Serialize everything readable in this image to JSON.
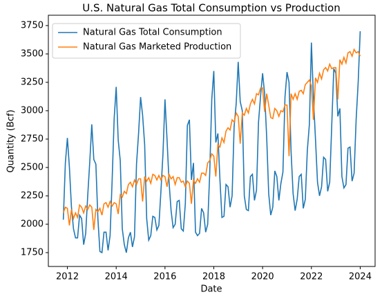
{
  "chart_data": {
    "type": "line",
    "title": "U.S. Natural Gas Total Consumption vs Production",
    "x_label": "Date",
    "y_label": "Quantity (Bcf)",
    "x": [
      2011.833,
      2011.917,
      2012.0,
      2012.083,
      2012.167,
      2012.25,
      2012.333,
      2012.417,
      2012.5,
      2012.583,
      2012.667,
      2012.75,
      2012.833,
      2012.917,
      2013.0,
      2013.083,
      2013.167,
      2013.25,
      2013.333,
      2013.417,
      2013.5,
      2013.583,
      2013.667,
      2013.75,
      2013.833,
      2013.917,
      2014.0,
      2014.083,
      2014.167,
      2014.25,
      2014.333,
      2014.417,
      2014.5,
      2014.583,
      2014.667,
      2014.75,
      2014.833,
      2014.917,
      2015.0,
      2015.083,
      2015.167,
      2015.25,
      2015.333,
      2015.417,
      2015.5,
      2015.583,
      2015.667,
      2015.75,
      2015.833,
      2015.917,
      2016.0,
      2016.083,
      2016.167,
      2016.25,
      2016.333,
      2016.417,
      2016.5,
      2016.583,
      2016.667,
      2016.75,
      2016.833,
      2016.917,
      2017.0,
      2017.083,
      2017.167,
      2017.25,
      2017.333,
      2017.417,
      2017.5,
      2017.583,
      2017.667,
      2017.75,
      2017.833,
      2017.917,
      2018.0,
      2018.083,
      2018.167,
      2018.25,
      2018.333,
      2018.417,
      2018.5,
      2018.583,
      2018.667,
      2018.75,
      2018.833,
      2018.917,
      2019.0,
      2019.083,
      2019.167,
      2019.25,
      2019.333,
      2019.417,
      2019.5,
      2019.583,
      2019.667,
      2019.75,
      2019.833,
      2019.917,
      2020.0,
      2020.083,
      2020.167,
      2020.25,
      2020.333,
      2020.417,
      2020.5,
      2020.583,
      2020.667,
      2020.75,
      2020.833,
      2020.917,
      2021.0,
      2021.083,
      2021.167,
      2021.25,
      2021.333,
      2021.417,
      2021.5,
      2021.583,
      2021.667,
      2021.75,
      2021.833,
      2021.917,
      2022.0,
      2022.083,
      2022.167,
      2022.25,
      2022.333,
      2022.417,
      2022.5,
      2022.583,
      2022.667,
      2022.75,
      2022.833,
      2022.917,
      2023.0,
      2023.083,
      2023.167,
      2023.25,
      2023.333,
      2023.417,
      2023.5,
      2023.583,
      2023.667,
      2023.75,
      2023.833,
      2023.917,
      2024.0
    ],
    "series": [
      {
        "name": "Natural Gas Total Consumption",
        "color": "#1f77b4",
        "values": [
          2040,
          2540,
          2760,
          2500,
          2150,
          1960,
          1880,
          1880,
          2080,
          2050,
          1820,
          1920,
          2250,
          2550,
          2880,
          2570,
          2530,
          2050,
          1760,
          1750,
          1930,
          1930,
          1770,
          1900,
          2380,
          2930,
          3210,
          2740,
          2560,
          1960,
          1820,
          1750,
          1880,
          1930,
          1800,
          1890,
          2530,
          2800,
          3120,
          2960,
          2700,
          2050,
          1860,
          1900,
          2070,
          2060,
          1950,
          1990,
          2290,
          2620,
          3100,
          2750,
          2370,
          2120,
          1970,
          2000,
          2200,
          2210,
          1960,
          1940,
          2180,
          2870,
          2920,
          2390,
          2540,
          1930,
          1900,
          1920,
          2140,
          2100,
          1930,
          2000,
          2450,
          3100,
          3350,
          2720,
          2800,
          2400,
          2060,
          2070,
          2350,
          2330,
          2150,
          2250,
          2860,
          3060,
          3430,
          3080,
          3000,
          2250,
          2130,
          2120,
          2420,
          2440,
          2210,
          2300,
          2900,
          3130,
          3330,
          3150,
          2770,
          2270,
          2080,
          2150,
          2470,
          2420,
          2210,
          2360,
          2460,
          3120,
          3340,
          3250,
          2640,
          2270,
          2120,
          2220,
          2420,
          2440,
          2140,
          2220,
          2650,
          2880,
          3600,
          3120,
          2750,
          2370,
          2250,
          2330,
          2590,
          2570,
          2290,
          2370,
          2870,
          3370,
          3330,
          2950,
          3020,
          2420,
          2320,
          2350,
          2670,
          2680,
          2380,
          2450,
          2920,
          3250,
          3700
        ]
      },
      {
        "name": "Natural Gas Marketed Production",
        "color": "#ff7f0e",
        "values": [
          2100,
          2150,
          2140,
          1990,
          2130,
          2050,
          2100,
          2060,
          2170,
          2150,
          2100,
          2160,
          2130,
          2170,
          2150,
          1950,
          2130,
          2110,
          2140,
          2080,
          2180,
          2190,
          2150,
          2200,
          2160,
          2190,
          2180,
          2090,
          2260,
          2240,
          2290,
          2270,
          2350,
          2370,
          2330,
          2390,
          2350,
          2400,
          2400,
          2200,
          2420,
          2380,
          2410,
          2360,
          2440,
          2430,
          2390,
          2430,
          2390,
          2430,
          2420,
          2330,
          2440,
          2400,
          2420,
          2350,
          2410,
          2410,
          2370,
          2380,
          2330,
          2380,
          2360,
          2180,
          2390,
          2360,
          2400,
          2370,
          2450,
          2450,
          2430,
          2540,
          2560,
          2620,
          2600,
          2420,
          2700,
          2680,
          2760,
          2720,
          2820,
          2850,
          2830,
          2920,
          2900,
          2980,
          2950,
          2710,
          2980,
          2960,
          3020,
          2980,
          3060,
          3100,
          3060,
          3150,
          3140,
          3200,
          3200,
          2990,
          3150,
          3050,
          2940,
          2930,
          3020,
          3000,
          2950,
          3000,
          2990,
          3050,
          3050,
          2600,
          3150,
          3100,
          3150,
          3100,
          3170,
          3180,
          3150,
          3230,
          3250,
          3270,
          3220,
          2920,
          3290,
          3250,
          3330,
          3280,
          3360,
          3380,
          3350,
          3410,
          3370,
          3380,
          3380,
          3100,
          3450,
          3410,
          3470,
          3420,
          3510,
          3520,
          3480,
          3540,
          3510,
          3520,
          3480
        ]
      }
    ],
    "xlim": [
      2011.22,
      2024.61
    ],
    "xticks": [
      2012,
      2014,
      2016,
      2018,
      2020,
      2022,
      2024
    ],
    "ylim": [
      1628,
      3841
    ],
    "yticks": [
      1750,
      2000,
      2250,
      2500,
      2750,
      3000,
      3250,
      3500,
      3750
    ],
    "legend": "upper left",
    "grid": false
  }
}
